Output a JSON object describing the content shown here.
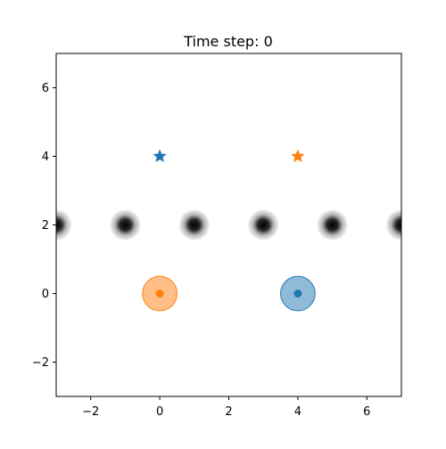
{
  "chart_data": {
    "type": "scatter",
    "title": "Time step: 0",
    "xlabel": "",
    "ylabel": "",
    "xlim": [
      -3,
      7
    ],
    "ylim": [
      -3,
      7
    ],
    "xticks": [
      -2,
      0,
      2,
      4,
      6
    ],
    "yticks": [
      -2,
      0,
      2,
      4,
      6
    ],
    "xtick_labels": [
      "−2",
      "0",
      "2",
      "4",
      "6"
    ],
    "ytick_labels": [
      "−2",
      "0",
      "2",
      "4",
      "6"
    ],
    "grid": false,
    "obstacles": {
      "x": [
        -3,
        -1,
        1,
        3,
        5,
        7
      ],
      "y": [
        2,
        2,
        2,
        2,
        2,
        2
      ],
      "radius": 0.45,
      "color": "#000000"
    },
    "agents": [
      {
        "color": "#1f77b4",
        "position": [
          4,
          0
        ],
        "goal": [
          0,
          4
        ],
        "radius": 0.5
      },
      {
        "color": "#ff7f0e",
        "position": [
          0,
          0
        ],
        "goal": [
          4,
          4
        ],
        "radius": 0.5
      }
    ]
  }
}
